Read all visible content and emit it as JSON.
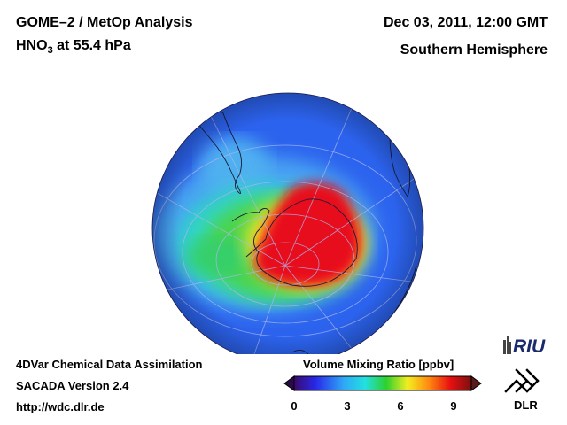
{
  "header": {
    "instrument": "GOME–2 / MetOp Analysis",
    "species_prefix": "HNO",
    "species_subscript": "3",
    "species_suffix": " at 55.4 hPa",
    "date": "Dec 03, 2011, 12:00 GMT",
    "hemisphere": "Southern Hemisphere"
  },
  "footer": {
    "method": "4DVar Chemical Data Assimilation",
    "version": "SACADA Version 2.4",
    "url": "http://wdc.dlr.de"
  },
  "colorbar": {
    "title": "Volume Mixing Ratio [ppbv]",
    "ticks": [
      "0",
      "3",
      "6",
      "9"
    ],
    "range": [
      0,
      10
    ]
  },
  "logos": {
    "riu": "RIU",
    "dlr": "DLR"
  },
  "colors": {
    "low": "#2a5cf0",
    "high": "#e8101a"
  }
}
